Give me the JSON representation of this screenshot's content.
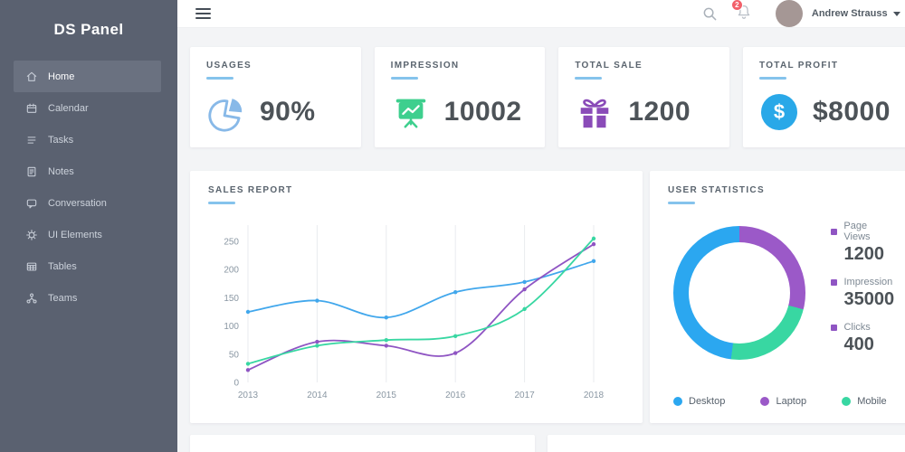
{
  "app": {
    "logo": "DS Panel"
  },
  "sidebar": {
    "items": [
      {
        "label": "Home",
        "icon": "home-icon",
        "active": true
      },
      {
        "label": "Calendar",
        "icon": "calendar-icon",
        "active": false
      },
      {
        "label": "Tasks",
        "icon": "tasks-icon",
        "active": false
      },
      {
        "label": "Notes",
        "icon": "notes-icon",
        "active": false
      },
      {
        "label": "Conversation",
        "icon": "chat-icon",
        "active": false
      },
      {
        "label": "UI Elements",
        "icon": "gear-icon",
        "active": false
      },
      {
        "label": "Tables",
        "icon": "table-icon",
        "active": false
      },
      {
        "label": "Teams",
        "icon": "org-chart-icon",
        "active": false
      }
    ]
  },
  "topbar": {
    "notification_count": "2",
    "user_name": "Andrew Strauss"
  },
  "stat_cards": [
    {
      "title": "USAGES",
      "value": "90%",
      "icon": "pie-chart-icon",
      "color": "#88b9e8"
    },
    {
      "title": "IMPRESSION",
      "value": "10002",
      "icon": "presentation-chart-icon",
      "color": "#3ecf8e"
    },
    {
      "title": "TOTAL SALE",
      "value": "1200",
      "icon": "gift-icon",
      "color": "#8a4bb8"
    },
    {
      "title": "TOTAL PROFIT",
      "value": "$8000",
      "icon": "dollar-circle-icon",
      "color": "#29a8e8",
      "dollar_glyph": "$"
    }
  ],
  "sales_report": {
    "title": "SALES REPORT"
  },
  "user_statistics": {
    "title": "USER STATISTICS",
    "bullet_color": "#8f55c3",
    "metrics": [
      {
        "label": "Page Views",
        "value": "1200"
      },
      {
        "label": "Impression",
        "value": "35000"
      },
      {
        "label": "Clicks",
        "value": "400"
      }
    ],
    "legend": [
      {
        "label": "Desktop",
        "color": "#2ba7f0"
      },
      {
        "label": "Laptop",
        "color": "#9b59c8"
      },
      {
        "label": "Mobile",
        "color": "#38d7a2"
      }
    ]
  },
  "chart_data": [
    {
      "type": "line",
      "title": "SALES REPORT",
      "x": [
        2013,
        2014,
        2015,
        2016,
        2017,
        2018
      ],
      "yticks": [
        0,
        50,
        100,
        150,
        200,
        250
      ],
      "ylim": [
        0,
        280
      ],
      "grid": "vertical-only",
      "legend_position": "none",
      "series": [
        {
          "name": "blue",
          "color": "#41a7ec",
          "values": [
            125,
            145,
            115,
            160,
            178,
            215
          ]
        },
        {
          "name": "purple",
          "color": "#8f55c3",
          "values": [
            22,
            72,
            65,
            52,
            165,
            245
          ]
        },
        {
          "name": "green",
          "color": "#38d7a2",
          "values": [
            33,
            65,
            75,
            82,
            130,
            255
          ]
        }
      ]
    },
    {
      "type": "donut",
      "title": "USER STATISTICS",
      "slices": [
        {
          "label": "Laptop",
          "color": "#9b59c8",
          "percent": 29
        },
        {
          "label": "Mobile",
          "color": "#38d7a2",
          "percent": 23
        },
        {
          "label": "Desktop",
          "color": "#2ba7f0",
          "percent": 48
        }
      ],
      "legend_position": "bottom"
    }
  ]
}
